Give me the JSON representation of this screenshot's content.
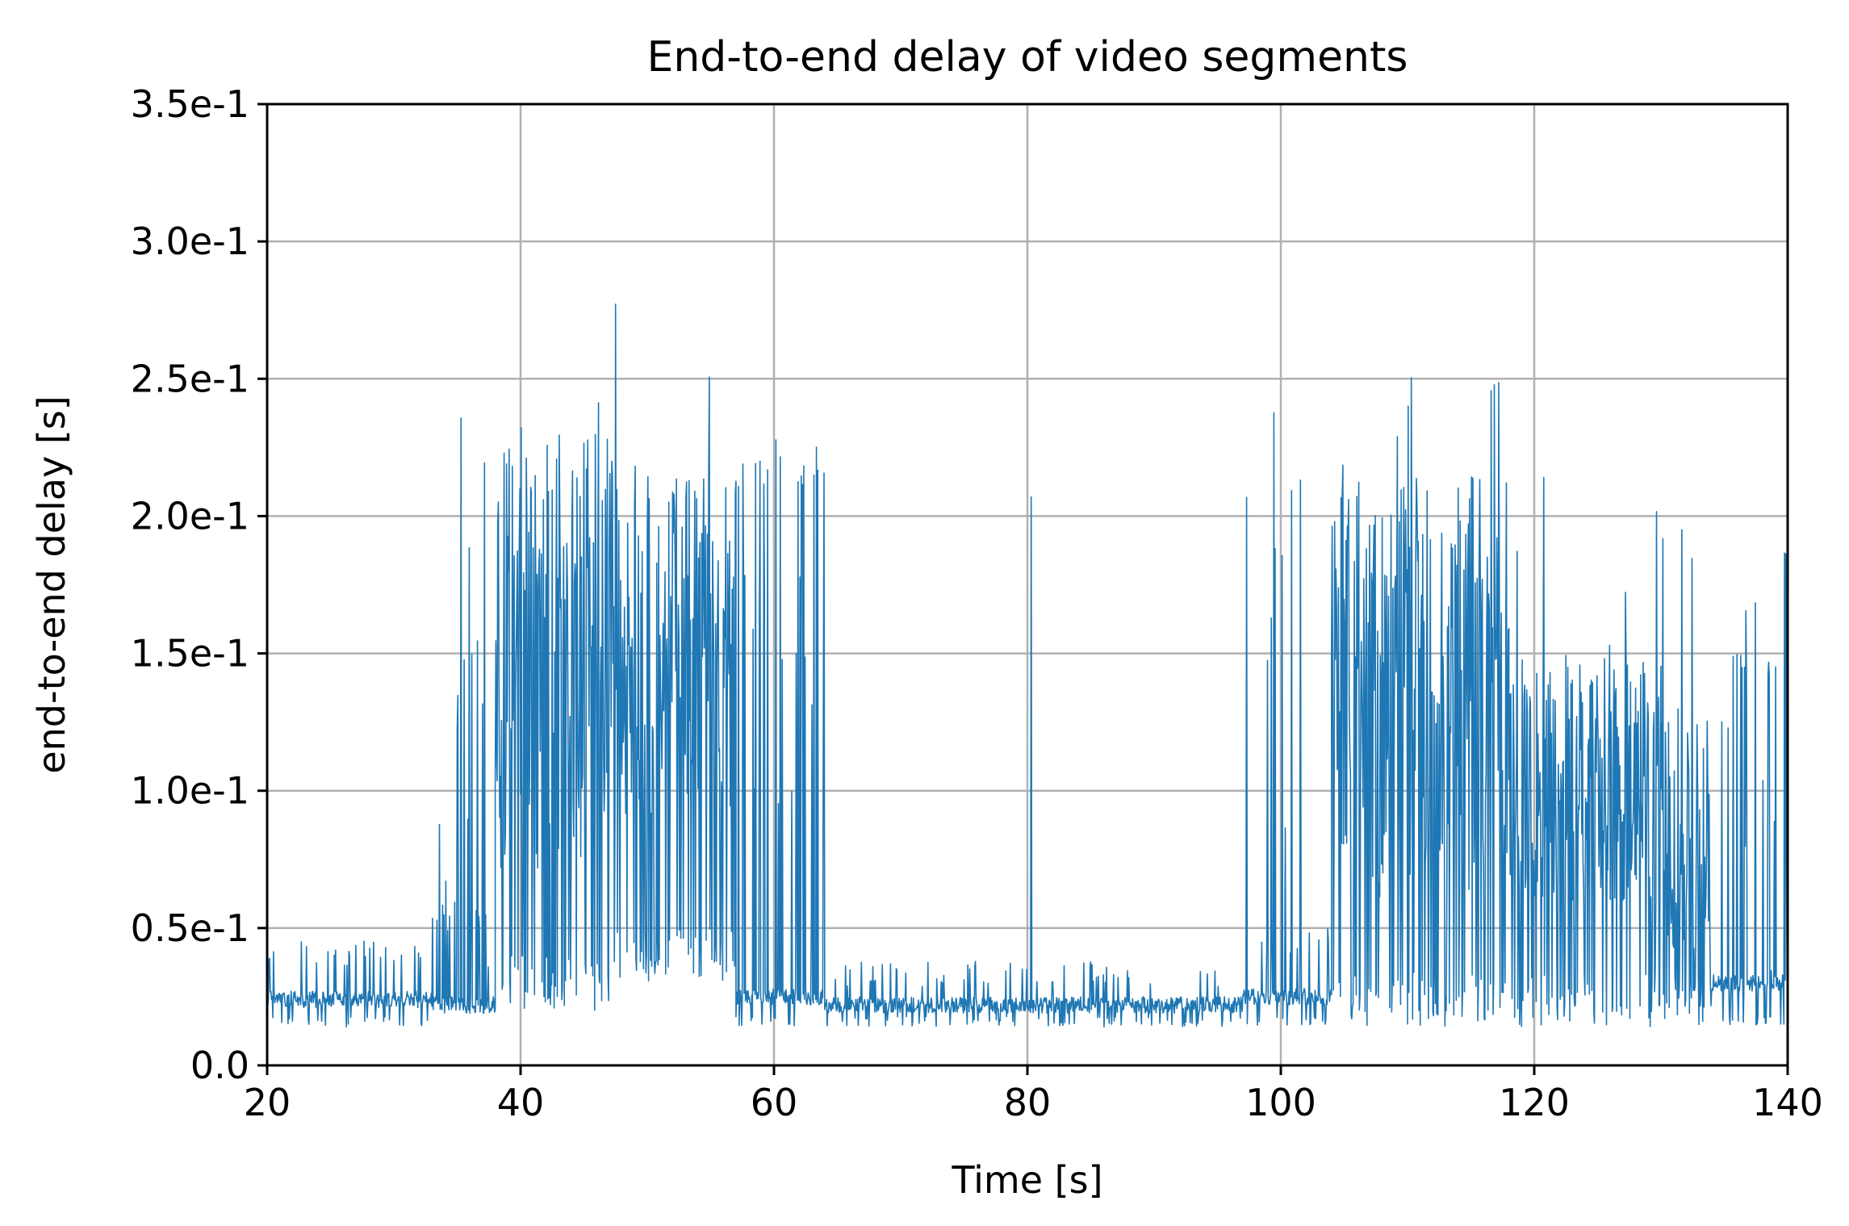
{
  "chart_data": {
    "type": "line",
    "title": "End-to-end delay of video segments",
    "xlabel": "Time [s]",
    "ylabel": "end-to-end delay [s]",
    "xlim": [
      20,
      140
    ],
    "ylim": [
      0.0,
      0.35
    ],
    "grid": true,
    "x_ticks": [
      20,
      40,
      60,
      80,
      100,
      120,
      140
    ],
    "x_tick_labels": [
      "20",
      "40",
      "60",
      "80",
      "100",
      "120",
      "140"
    ],
    "y_ticks": [
      0.0,
      0.05,
      0.1,
      0.15,
      0.2,
      0.25,
      0.3,
      0.35
    ],
    "y_tick_labels": [
      "0.0",
      "0.5e-1",
      "1.0e-1",
      "1.5e-1",
      "2.0e-1",
      "2.5e-1",
      "3.0e-1",
      "3.5e-1"
    ],
    "series": [
      {
        "color": "#1f77b4",
        "regimes": [
          {
            "x_start": 20,
            "x_end": 33,
            "base": 0.024,
            "low": 0.014,
            "high": 0.046,
            "spike_rate": 0.0,
            "spike_max": 0.0
          },
          {
            "x_start": 33,
            "x_end": 38,
            "base": 0.022,
            "low": 0.02,
            "high": 0.06,
            "spike_rate": 0.12,
            "spike_max": 0.248
          },
          {
            "x_start": 38,
            "x_end": 47,
            "base": 0.13,
            "low": 0.02,
            "high": 0.23,
            "spike_rate": 0.08,
            "spike_max": 0.242
          },
          {
            "x_start": 47,
            "x_end": 57,
            "base": 0.15,
            "low": 0.03,
            "high": 0.22,
            "spike_rate": 0.05,
            "spike_max": 0.281
          },
          {
            "x_start": 57,
            "x_end": 64,
            "base": 0.025,
            "low": 0.014,
            "high": 0.22,
            "spike_rate": 0.15,
            "spike_max": 0.238
          },
          {
            "x_start": 64,
            "x_end": 97,
            "base": 0.022,
            "low": 0.014,
            "high": 0.038,
            "spike_rate": 0.004,
            "spike_max": 0.215
          },
          {
            "x_start": 97,
            "x_end": 104,
            "base": 0.025,
            "low": 0.014,
            "high": 0.05,
            "spike_rate": 0.07,
            "spike_max": 0.254
          },
          {
            "x_start": 104,
            "x_end": 118,
            "base": 0.12,
            "low": 0.014,
            "high": 0.215,
            "spike_rate": 0.04,
            "spike_max": 0.252
          },
          {
            "x_start": 118,
            "x_end": 130,
            "base": 0.12,
            "low": 0.014,
            "high": 0.15,
            "spike_rate": 0.03,
            "spike_max": 0.22
          },
          {
            "x_start": 130,
            "x_end": 134,
            "base": 0.1,
            "low": 0.014,
            "high": 0.13,
            "spike_rate": 0.05,
            "spike_max": 0.215
          },
          {
            "x_start": 134,
            "x_end": 140,
            "base": 0.03,
            "low": 0.014,
            "high": 0.15,
            "spike_rate": 0.08,
            "spike_max": 0.215
          }
        ]
      }
    ]
  }
}
